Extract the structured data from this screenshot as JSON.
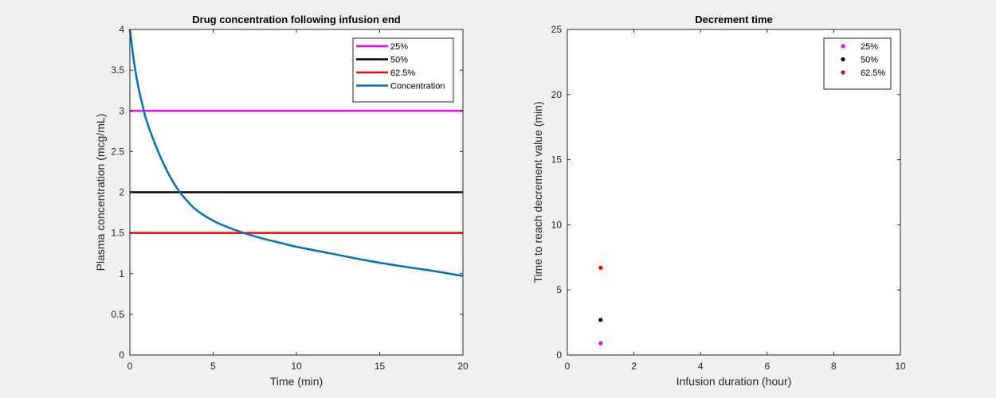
{
  "colors": {
    "figure_bg": "#f0f0f0",
    "axes_bg": "#ffffff",
    "axis_line": "#262626",
    "text": "#000000"
  },
  "chart_data": [
    {
      "type": "line",
      "title": "Drug concentration following infusion end",
      "xlabel": "Time (min)",
      "ylabel": "Plasma concentration (mcg/mL)",
      "xlim": [
        0,
        20
      ],
      "ylim": [
        0,
        4
      ],
      "xticks": [
        0,
        5,
        10,
        15,
        20
      ],
      "yticks": [
        0,
        0.5,
        1,
        1.5,
        2,
        2.5,
        3,
        3.5,
        4
      ],
      "grid": false,
      "legend_position": "top-right",
      "series": [
        {
          "name": "25%",
          "color": "#ff00ff",
          "kind": "hline",
          "y": 3
        },
        {
          "name": "50%",
          "color": "#000000",
          "kind": "hline",
          "y": 2
        },
        {
          "name": "62.5%",
          "color": "#ff0000",
          "kind": "hline",
          "y": 1.5
        },
        {
          "name": "Concentration",
          "color": "#0072bd",
          "kind": "line",
          "x": [
            0,
            0.25,
            0.5,
            0.75,
            1,
            1.5,
            2,
            2.5,
            3,
            3.5,
            4,
            5,
            6,
            7,
            8,
            9,
            10,
            12,
            14,
            16,
            18,
            20
          ],
          "y": [
            4.0,
            3.6,
            3.3,
            3.08,
            2.88,
            2.6,
            2.36,
            2.16,
            2.0,
            1.88,
            1.78,
            1.65,
            1.56,
            1.49,
            1.43,
            1.38,
            1.33,
            1.25,
            1.17,
            1.1,
            1.04,
            0.97
          ]
        }
      ]
    },
    {
      "type": "scatter",
      "title": "Decrement time",
      "xlabel": "Infusion duration (hour)",
      "ylabel": "Time to reach decrement value (min)",
      "xlim": [
        0,
        10
      ],
      "ylim": [
        0,
        25
      ],
      "xticks": [
        0,
        2,
        4,
        6,
        8,
        10
      ],
      "yticks": [
        0,
        5,
        10,
        15,
        20,
        25
      ],
      "grid": false,
      "legend_position": "top-right",
      "series": [
        {
          "name": "25%",
          "color": "#ff00ff",
          "x": [
            1
          ],
          "y": [
            0.9
          ]
        },
        {
          "name": "50%",
          "color": "#000000",
          "x": [
            1
          ],
          "y": [
            2.7
          ]
        },
        {
          "name": "62.5%",
          "color": "#ff0000",
          "x": [
            1
          ],
          "y": [
            6.7
          ]
        }
      ]
    }
  ]
}
